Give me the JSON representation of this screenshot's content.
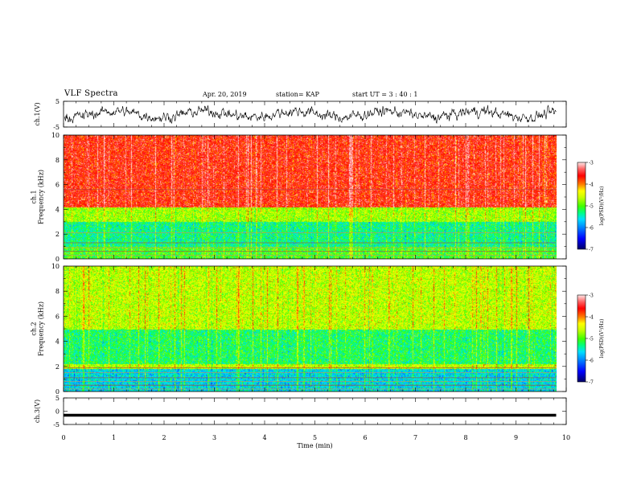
{
  "header": {
    "title": "VLF Spectra",
    "date": "Apr. 20, 2019",
    "station": "station= KAP",
    "start": "start  UT  =   3  : 40 : 1"
  },
  "colors": {
    "colormap": [
      "#000080",
      "#0000ff",
      "#00c8ff",
      "#00ff80",
      "#80ff00",
      "#ffff00",
      "#ff8000",
      "#ff0000",
      "#ffc8c8",
      "#ffffff"
    ]
  },
  "chart_data": [
    {
      "type": "line",
      "id": "ch1-waveform",
      "ylabel": "ch.1(V)",
      "ylim": [
        -5,
        5
      ],
      "yticks": [
        "5",
        "-5"
      ],
      "xlim": [
        0,
        10
      ],
      "note_values": "dense noisy waveform fluctuating roughly between -3 and +3 V over 0-9.8 min",
      "y_range_observed": [
        -3.5,
        3.5
      ]
    },
    {
      "type": "heatmap",
      "id": "ch1-spectrogram",
      "ylabel": "ch.1\nFrequency  (kHz)",
      "ylim": [
        0,
        10
      ],
      "yticks": [
        "0",
        "2",
        "4",
        "6",
        "8",
        "10"
      ],
      "xlim": [
        0,
        10
      ],
      "data_end_min": 9.8,
      "colorbar": {
        "label": "log(PSD)(V²/Hz)",
        "range": [
          -7,
          -3
        ],
        "ticks": [
          "-3",
          "-4",
          "-5",
          "-6",
          "-7"
        ]
      },
      "bands": [
        {
          "fmin": 0,
          "fmax": 1.0,
          "level": -5.0
        },
        {
          "fmin": 1.0,
          "fmax": 3.0,
          "level": -5.3
        },
        {
          "fmin": 3.0,
          "fmax": 4.2,
          "level": -4.7
        },
        {
          "fmin": 4.2,
          "fmax": 10,
          "level": -3.6
        }
      ]
    },
    {
      "type": "heatmap",
      "id": "ch2-spectrogram",
      "ylabel": "ch.2\nFrequency  (kHz)",
      "ylim": [
        0,
        10
      ],
      "yticks": [
        "0",
        "2",
        "4",
        "6",
        "8",
        "10"
      ],
      "xlim": [
        0,
        10
      ],
      "data_end_min": 9.8,
      "colorbar": {
        "label": "log(PSD)(V²/Hz)",
        "range": [
          -7,
          -3
        ],
        "ticks": [
          "-3",
          "-4",
          "-5",
          "-6",
          "-7"
        ]
      },
      "bands": [
        {
          "fmin": 0,
          "fmax": 1.8,
          "level": -5.6
        },
        {
          "fmin": 1.8,
          "fmax": 2.2,
          "level": -4.6
        },
        {
          "fmin": 2.2,
          "fmax": 5.0,
          "level": -5.2
        },
        {
          "fmin": 5.0,
          "fmax": 10,
          "level": -4.6
        }
      ]
    },
    {
      "type": "line",
      "id": "ch3-waveform",
      "ylabel": "ch.3(V)",
      "ylim": [
        -5,
        5
      ],
      "yticks": [
        "5",
        "0",
        "-5"
      ],
      "xlim": [
        0,
        10
      ],
      "constant_value": -1.5
    }
  ],
  "xaxis": {
    "label": "Time  (min)",
    "ticks": [
      "0",
      "1",
      "2",
      "3",
      "4",
      "5",
      "6",
      "7",
      "8",
      "9",
      "10"
    ]
  }
}
